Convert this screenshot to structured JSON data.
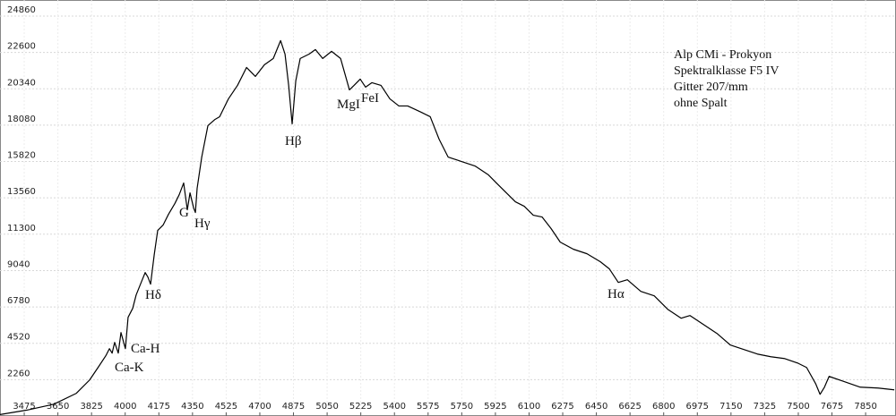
{
  "chart_data": {
    "type": "line",
    "legend_text": [
      "Alp CMi - Prokyon",
      "Spektralklasse F5 IV",
      "Gitter 207/mm",
      "ohne Spalt"
    ],
    "annotations": [
      "Ca-K",
      "Ca-H",
      "Hδ",
      "G",
      "Hγ",
      "Hβ",
      "MgI",
      "FeI",
      "Hα"
    ],
    "color": "#000000",
    "grid": true,
    "xlim": [
      3349,
      8008
    ],
    "ylim": [
      0,
      25860
    ],
    "xticks": [
      3475,
      3650,
      3825,
      4000,
      4175,
      4350,
      4525,
      4700,
      4875,
      5050,
      5225,
      5400,
      5575,
      5750,
      5925,
      6100,
      6275,
      6450,
      6625,
      6800,
      6975,
      7150,
      7325,
      7500,
      7675,
      7850
    ],
    "yticks": [
      2260,
      4520,
      6780,
      9040,
      11300,
      13560,
      15820,
      18080,
      20340,
      22600,
      24860
    ],
    "x": [
      3349,
      3489,
      3629,
      3745,
      3815,
      3862,
      3899,
      3918,
      3932,
      3945,
      3964,
      3978,
      4001,
      4015,
      4039,
      4057,
      4085,
      4104,
      4118,
      4132,
      4151,
      4169,
      4197,
      4225,
      4258,
      4281,
      4304,
      4323,
      4337,
      4356,
      4365,
      4374,
      4398,
      4430,
      4467,
      4491,
      4537,
      4584,
      4631,
      4677,
      4724,
      4770,
      4808,
      4831,
      4850,
      4868,
      4887,
      4910,
      4957,
      4989,
      5027,
      5073,
      5120,
      5166,
      5190,
      5222,
      5250,
      5283,
      5330,
      5376,
      5423,
      5469,
      5539,
      5586,
      5632,
      5679,
      5749,
      5819,
      5889,
      5935,
      5982,
      6029,
      6075,
      6122,
      6168,
      6215,
      6262,
      6331,
      6401,
      6471,
      6518,
      6564,
      6611,
      6681,
      6751,
      6821,
      6891,
      6937,
      7007,
      7077,
      7147,
      7217,
      7287,
      7357,
      7427,
      7496,
      7543,
      7590,
      7613,
      7636,
      7660,
      7729,
      7822,
      7915,
      7999
    ],
    "values": [
      89,
      367,
      735,
      1403,
      2238,
      3073,
      3741,
      4186,
      3908,
      4576,
      3908,
      5188,
      4186,
      6134,
      6690,
      7525,
      8360,
      8917,
      8639,
      8194,
      10031,
      11534,
      11868,
      12536,
      13204,
      13761,
      14485,
      12815,
      13872,
      12926,
      12648,
      14151,
      16099,
      18048,
      18438,
      18605,
      19718,
      20553,
      21667,
      21110,
      21834,
      22224,
      23337,
      22502,
      20553,
      18159,
      20832,
      22224,
      22502,
      22780,
      22224,
      22669,
      22224,
      20275,
      20553,
      20943,
      20442,
      20720,
      20553,
      19718,
      19272,
      19272,
      18883,
      18605,
      17213,
      16099,
      15821,
      15543,
      14986,
      14429,
      13872,
      13316,
      13037,
      12481,
      12369,
      11645,
      10810,
      10365,
      10087,
      9586,
      9140,
      8305,
      8472,
      7749,
      7470,
      6635,
      6078,
      6245,
      5688,
      5132,
      4408,
      4130,
      3852,
      3685,
      3574,
      3295,
      3017,
      2015,
      1347,
      1793,
      2461,
      2182,
      1793,
      1737,
      1626
    ]
  }
}
